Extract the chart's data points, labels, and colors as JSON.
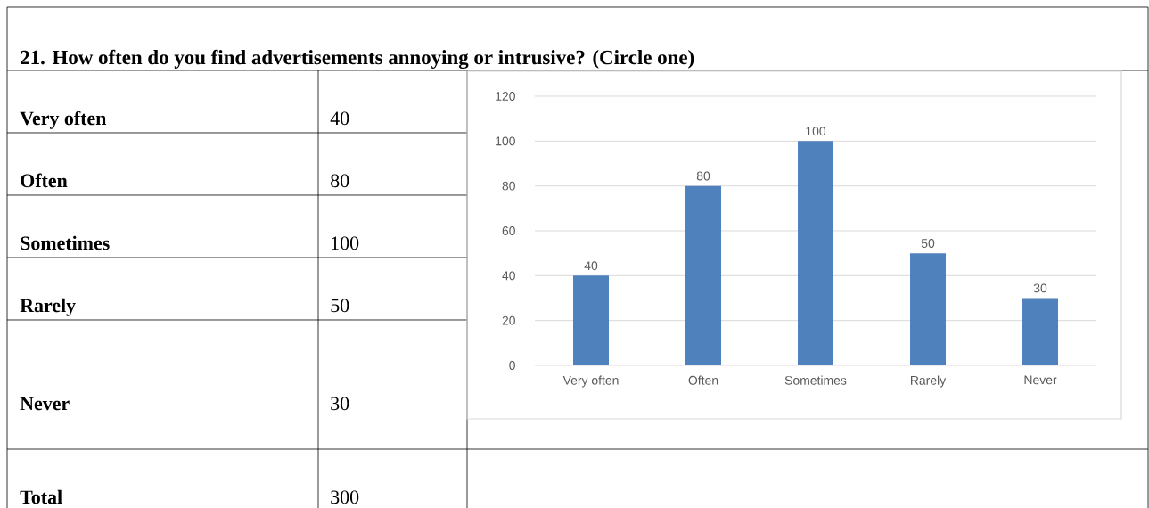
{
  "chart_data": {
    "type": "bar",
    "title": "21. How often do you find advertisements annoying or intrusive? (Circle one)",
    "categories": [
      "Very often",
      "Often",
      "Sometimes",
      "Rarely",
      "Never"
    ],
    "values": [
      40,
      80,
      100,
      50,
      30
    ],
    "color": "#4f81bd",
    "ylim": [
      0,
      120
    ],
    "yticks": [
      0,
      20,
      40,
      60,
      80,
      100,
      120
    ],
    "grid": "y",
    "value_labels": [
      "40",
      "80",
      "100",
      "50",
      "30"
    ],
    "annotations": [
      "40",
      "80",
      "100",
      "50",
      "30",
      "Total",
      "300"
    ]
  }
}
